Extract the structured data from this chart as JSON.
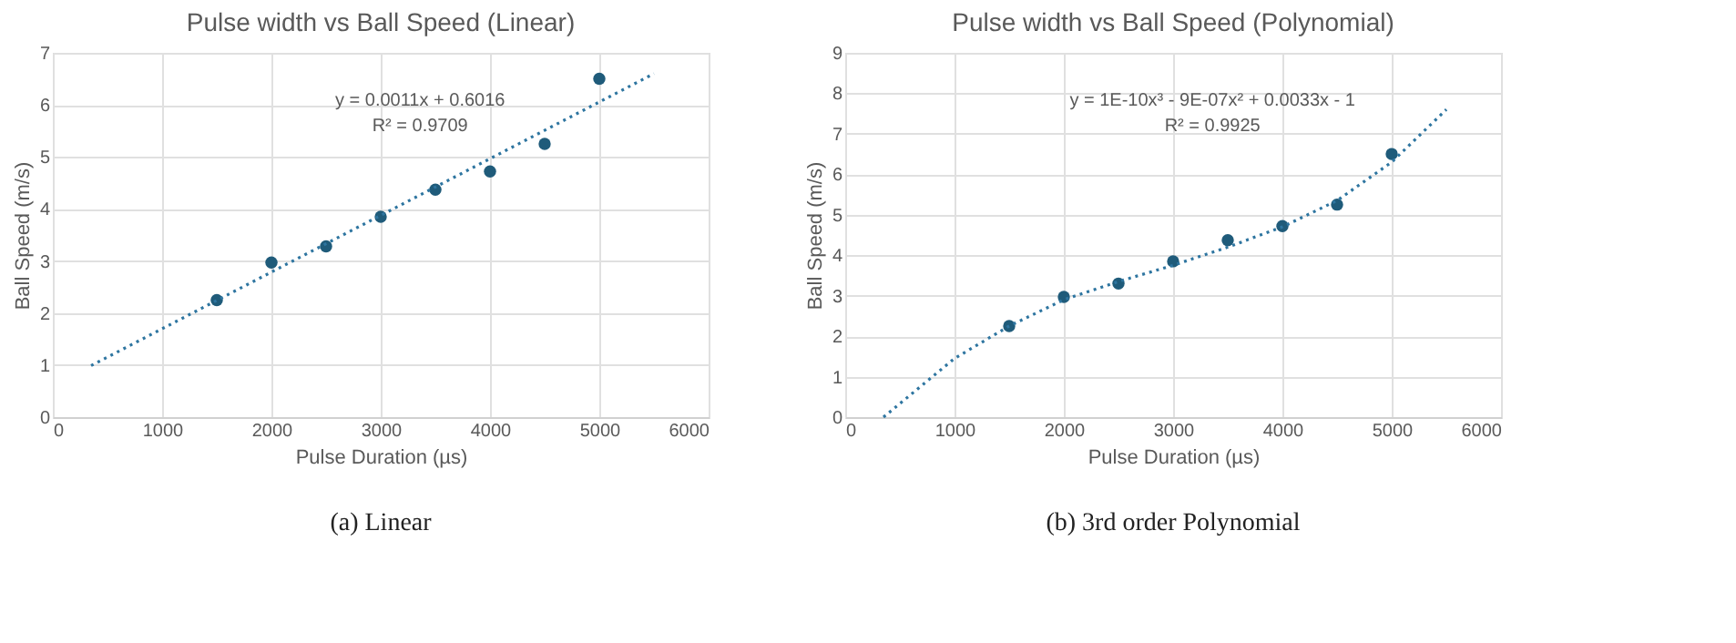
{
  "chart_data": [
    {
      "type": "scatter",
      "title": "Pulse width vs Ball Speed (Linear)",
      "xlabel": "Pulse Duration (µs)",
      "ylabel": "Ball Speed (m/s)",
      "annotations": [
        "y = 0.0011x + 0.6016",
        "R² = 0.9709",
        "(a) Linear"
      ],
      "xlim": [
        0,
        6000
      ],
      "xticks": [
        0,
        1000,
        2000,
        3000,
        4000,
        5000,
        6000
      ],
      "ylim": [
        0,
        7
      ],
      "yticks": [
        0,
        1,
        2,
        3,
        4,
        5,
        6,
        7
      ],
      "grid": true,
      "marker": "circle",
      "series": [
        {
          "color": "#1f5b7a",
          "x": [
            1500,
            2000,
            2500,
            3000,
            3500,
            4000,
            4500,
            5000
          ],
          "values": [
            2.25,
            2.97,
            3.28,
            3.85,
            4.37,
            4.72,
            5.25,
            6.5
          ]
        },
        {
          "type": "line",
          "line_style": "dotted",
          "marker": "none",
          "color": "#2e75a0",
          "x": [
            350,
            5500
          ],
          "values": [
            0.99,
            6.6
          ]
        }
      ]
    },
    {
      "type": "scatter",
      "title": "Pulse width vs Ball Speed (Polynomial)",
      "xlabel": "Pulse Duration (µs)",
      "ylabel": "Ball Speed (m/s)",
      "annotations": [
        "y = 1E-10x³ - 9E-07x² + 0.0033x - 1",
        "R² = 0.9925",
        "(b) 3rd order Polynomial"
      ],
      "xlim": [
        0,
        6000
      ],
      "xticks": [
        0,
        1000,
        2000,
        3000,
        4000,
        5000,
        6000
      ],
      "ylim": [
        0,
        9
      ],
      "yticks": [
        0,
        1,
        2,
        3,
        4,
        5,
        6,
        7,
        8,
        9
      ],
      "grid": true,
      "marker": "circle",
      "series": [
        {
          "color": "#1f5b7a",
          "x": [
            1500,
            2000,
            2500,
            3000,
            3500,
            4000,
            4500,
            5000
          ],
          "values": [
            2.25,
            2.97,
            3.3,
            3.85,
            4.37,
            4.72,
            5.25,
            6.5
          ]
        },
        {
          "type": "line",
          "line_style": "dotted",
          "marker": "none",
          "color": "#2e75a0",
          "x": [
            350,
            1000,
            1500,
            2000,
            2500,
            3000,
            3500,
            4000,
            4500,
            5000,
            5500
          ],
          "values": [
            0,
            1.45,
            2.25,
            2.9,
            3.35,
            3.75,
            4.2,
            4.7,
            5.35,
            6.3,
            7.6
          ]
        }
      ]
    }
  ]
}
